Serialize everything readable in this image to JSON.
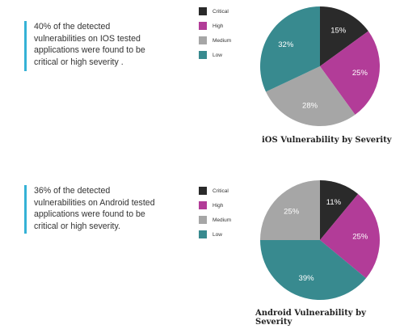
{
  "panels": [
    {
      "callout_text": "40% of the detected vulnerabilities on IOS tested applications were found to be critical or high severity .",
      "title": "iOS Vulnerability by Severity"
    },
    {
      "callout_text": "36% of the detected vulnerabilities on Android tested applications were found to be critical or high severity.",
      "title": "Android Vulnerability by Severity"
    }
  ],
  "legend": [
    {
      "label": "Critical",
      "color": "#2a2a2a"
    },
    {
      "label": "High",
      "color": "#b23c98"
    },
    {
      "label": "Medium",
      "color": "#a6a6a6"
    },
    {
      "label": "Low",
      "color": "#388a8f"
    }
  ],
  "chart_data": [
    {
      "type": "pie",
      "title": "iOS Vulnerability by Severity",
      "categories": [
        "Critical",
        "High",
        "Medium",
        "Low"
      ],
      "values": [
        15,
        25,
        28,
        32
      ],
      "value_labels": [
        "15%",
        "25%",
        "28%",
        "32%"
      ],
      "colors": [
        "#2a2a2a",
        "#b23c98",
        "#a6a6a6",
        "#388a8f"
      ],
      "legend_position": "left"
    },
    {
      "type": "pie",
      "title": "Android Vulnerability by Severity",
      "categories": [
        "Critical",
        "High",
        "Low",
        "Medium"
      ],
      "values": [
        11,
        25,
        39,
        25
      ],
      "value_labels": [
        "11%",
        "25%",
        "39%",
        "25%"
      ],
      "colors": [
        "#2a2a2a",
        "#b23c98",
        "#388a8f",
        "#a6a6a6"
      ],
      "legend_position": "left"
    }
  ]
}
